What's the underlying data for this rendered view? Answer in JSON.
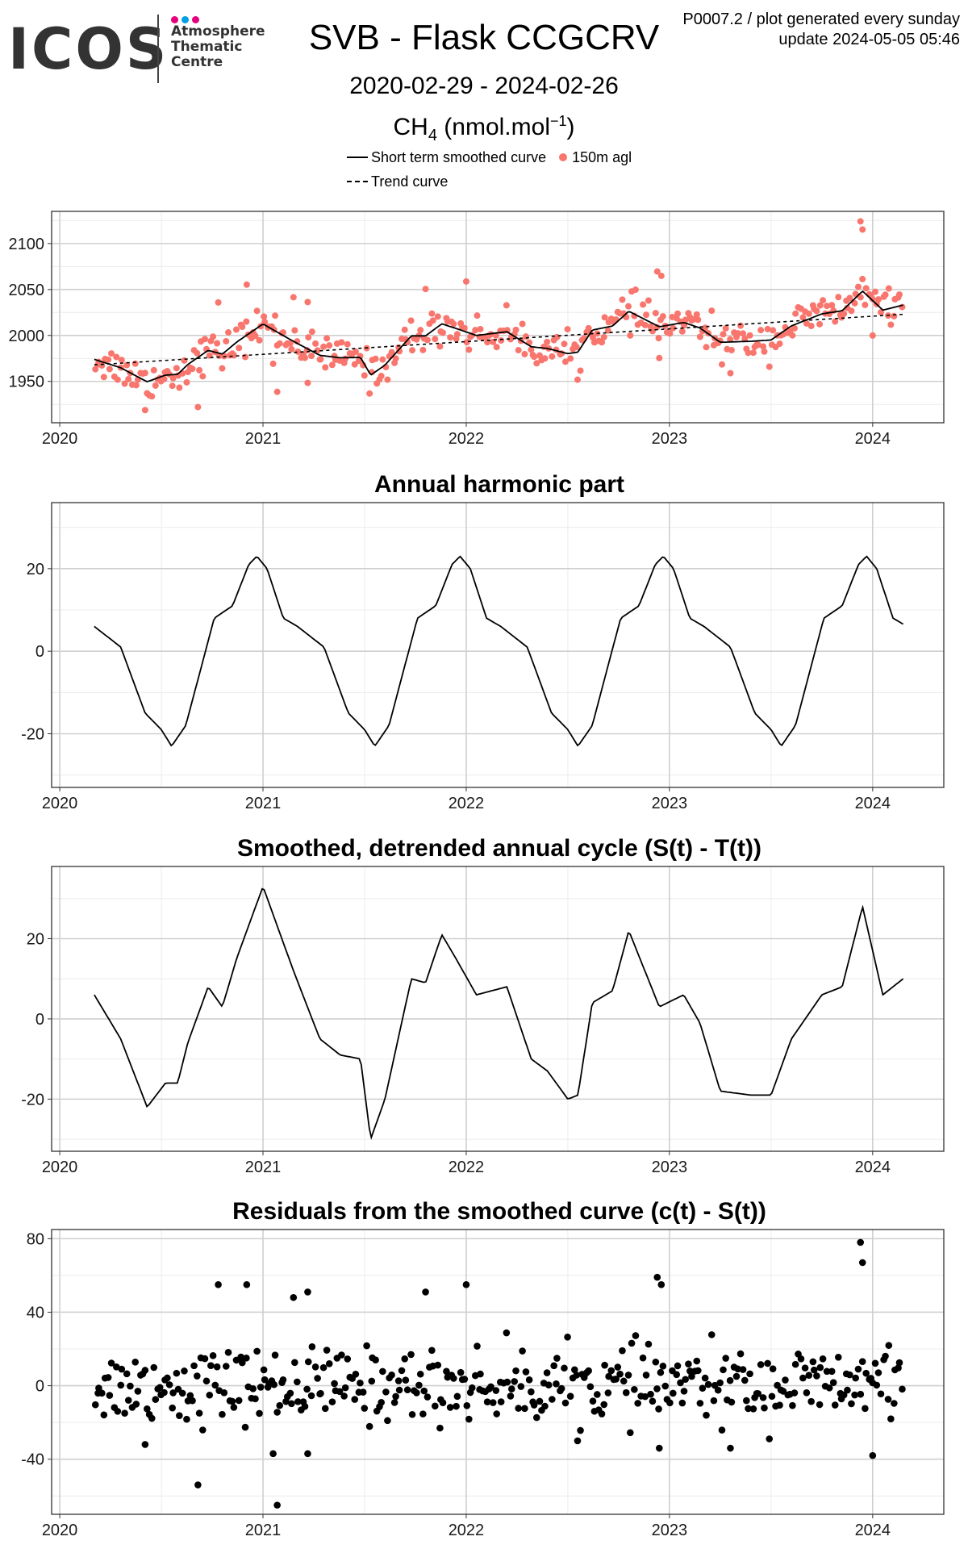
{
  "header": {
    "logo": "ICOS",
    "logo_subtitle": [
      "Atmosphere",
      "Thematic",
      "Centre"
    ],
    "logo_dot_colors": [
      "#e6007e",
      "#00a0e3",
      "#e6007e"
    ],
    "title": "SVB - Flask CCGCRV",
    "date_range": "2020-02-29 - 2024-02-26",
    "unit_main": "CH",
    "unit_sub": "4",
    "unit_rest": " (nmol.mol",
    "unit_sup": "−1",
    "unit_close": ")",
    "meta_line1": "P0007.2 / plot generated every sunday",
    "meta_line2": "update  2024-05-05 05:46"
  },
  "legend": {
    "smoothed_label": "Short term smoothed curve",
    "points_label": "150m agl",
    "trend_label": "Trend curve",
    "points_color": "#F8766D"
  },
  "chart_data": [
    {
      "type": "scatter",
      "title": "",
      "series": [
        {
          "name": "150m agl",
          "kind": "points",
          "generated_from": "smoothed curve plus residuals"
        },
        {
          "name": "Short term smoothed curve",
          "kind": "line"
        },
        {
          "name": "Trend curve",
          "kind": "dashed-line",
          "x": [
            2020.17,
            2024.15
          ],
          "y": [
            1968,
            2023
          ]
        }
      ],
      "xlim": [
        2019.96,
        2024.35
      ],
      "ylim": [
        1905,
        2135
      ],
      "x_ticks": [
        "2020",
        "2021",
        "2022",
        "2023",
        "2024"
      ],
      "y_ticks": [
        1950,
        2000,
        2050,
        2100
      ],
      "y_tick_labels": [
        "1950",
        "2000",
        "2050",
        "2100"
      ],
      "grid": true
    },
    {
      "type": "line",
      "title": "Annual harmonic part",
      "xlim": [
        2019.96,
        2024.35
      ],
      "ylim": [
        -33,
        36
      ],
      "x_ticks": [
        "2020",
        "2021",
        "2022",
        "2023",
        "2024"
      ],
      "y_ticks": [
        -20,
        0,
        20
      ],
      "y_tick_labels": [
        "-20",
        "0",
        "20"
      ],
      "grid": true,
      "annual_cycle": {
        "phase": [
          0.17,
          0.3,
          0.42,
          0.5,
          0.55,
          0.62,
          0.76,
          0.85,
          0.93,
          0.97,
          1.02,
          1.1,
          1.17
        ],
        "value": [
          6,
          1,
          -15,
          -19,
          -23,
          -18,
          8,
          11,
          21,
          23,
          20,
          8,
          6
        ]
      }
    },
    {
      "type": "line",
      "title": "Smoothed, detrended annual cycle (S(t) - T(t))",
      "xlim": [
        2019.96,
        2024.35
      ],
      "ylim": [
        -33,
        38
      ],
      "x_ticks": [
        "2020",
        "2021",
        "2022",
        "2023",
        "2024"
      ],
      "y_ticks": [
        -20,
        0,
        20
      ],
      "y_tick_labels": [
        "-20",
        "0",
        "20"
      ],
      "grid": true,
      "x": [
        2020.17,
        2020.3,
        2020.43,
        2020.52,
        2020.58,
        2020.63,
        2020.73,
        2020.8,
        2020.87,
        2021.0,
        2021.15,
        2021.28,
        2021.38,
        2021.48,
        2021.53,
        2021.6,
        2021.73,
        2021.8,
        2021.88,
        2021.95,
        2022.05,
        2022.2,
        2022.32,
        2022.4,
        2022.5,
        2022.55,
        2022.62,
        2022.72,
        2022.8,
        2022.95,
        2023.07,
        2023.15,
        2023.25,
        2023.4,
        2023.5,
        2023.6,
        2023.75,
        2023.85,
        2023.95,
        2024.05,
        2024.15
      ],
      "y": [
        6,
        -5,
        -22,
        -16,
        -16,
        -6,
        8,
        3,
        15,
        33,
        12,
        -5,
        -9,
        -10,
        -30,
        -20,
        10,
        9,
        21,
        15,
        6,
        8,
        -10,
        -13,
        -20,
        -19,
        4,
        7,
        22,
        3,
        6,
        -1,
        -18,
        -19,
        -19,
        -5,
        6,
        8,
        28,
        6,
        10
      ]
    },
    {
      "type": "scatter",
      "title": "Residuals from the smoothed curve (c(t) - S(t))",
      "xlim": [
        2019.96,
        2024.35
      ],
      "ylim": [
        -70,
        85
      ],
      "x_ticks": [
        "2020",
        "2021",
        "2022",
        "2023",
        "2024"
      ],
      "y_ticks": [
        -40,
        0,
        40,
        80
      ],
      "y_tick_labels": [
        "-40",
        "0",
        "40",
        "80"
      ],
      "grid": true,
      "n_points": 390,
      "x_range": [
        2020.17,
        2024.15
      ],
      "outliers": [
        {
          "x": 2020.78,
          "y": 55
        },
        {
          "x": 2020.92,
          "y": 55
        },
        {
          "x": 2020.68,
          "y": -54
        },
        {
          "x": 2021.07,
          "y": -65
        },
        {
          "x": 2021.15,
          "y": 48
        },
        {
          "x": 2021.22,
          "y": 51
        },
        {
          "x": 2022.0,
          "y": 55
        },
        {
          "x": 2021.8,
          "y": 51
        },
        {
          "x": 2022.94,
          "y": 59
        },
        {
          "x": 2022.96,
          "y": 55
        },
        {
          "x": 2023.94,
          "y": 78
        },
        {
          "x": 2023.95,
          "y": 67
        },
        {
          "x": 2024.0,
          "y": -38
        },
        {
          "x": 2020.42,
          "y": -32
        },
        {
          "x": 2023.3,
          "y": -34
        },
        {
          "x": 2022.95,
          "y": -34
        },
        {
          "x": 2021.05,
          "y": -37
        },
        {
          "x": 2021.22,
          "y": -37
        }
      ]
    }
  ]
}
